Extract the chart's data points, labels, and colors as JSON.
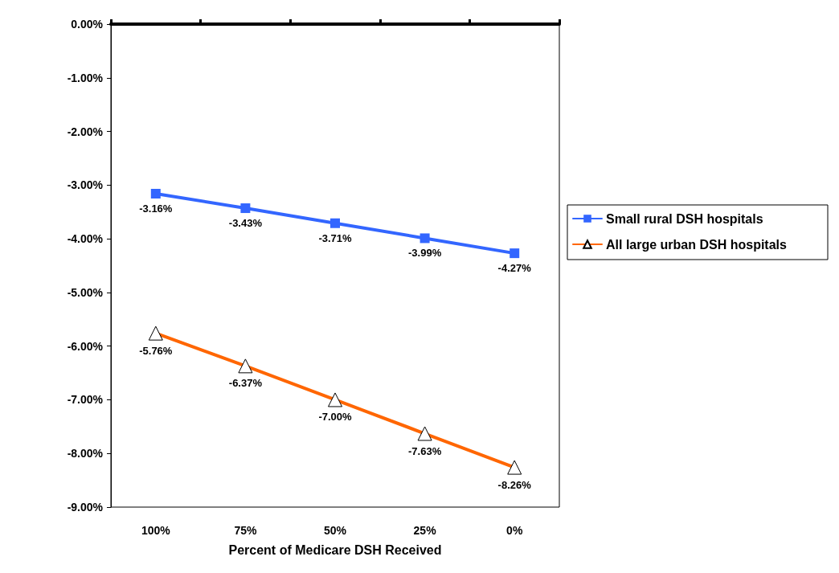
{
  "chart_data": {
    "type": "line",
    "xlabel": "Percent of Medicare DSH Received",
    "categories": [
      "100%",
      "75%",
      "50%",
      "25%",
      "0%"
    ],
    "series": [
      {
        "name": "Small rural DSH hospitals",
        "color": "#3366ff",
        "marker": "square",
        "values": [
          -3.16,
          -3.43,
          -3.71,
          -3.99,
          -4.27
        ],
        "value_labels": [
          "-3.16%",
          "-3.43%",
          "-3.71%",
          "-3.99%",
          "-4.27%"
        ]
      },
      {
        "name": "All large urban DSH hospitals",
        "color": "#ff6600",
        "marker": "triangle",
        "values": [
          -5.76,
          -6.37,
          -7.0,
          -7.63,
          -8.26
        ],
        "value_labels": [
          "-5.76%",
          "-6.37%",
          "-7.00%",
          "-7.63%",
          "-8.26%"
        ]
      }
    ],
    "ylim": [
      -9,
      0
    ],
    "yticks": [
      {
        "value": 0,
        "label": "0.00%"
      },
      {
        "value": -1,
        "label": "-1.00%"
      },
      {
        "value": -2,
        "label": "-2.00%"
      },
      {
        "value": -3,
        "label": "-3.00%"
      },
      {
        "value": -4,
        "label": "-4.00%"
      },
      {
        "value": -5,
        "label": "-5.00%"
      },
      {
        "value": -6,
        "label": "-6.00%"
      },
      {
        "value": -7,
        "label": "-7.00%"
      },
      {
        "value": -8,
        "label": "-8.00%"
      },
      {
        "value": -9,
        "label": "-9.00%"
      }
    ],
    "grid": false,
    "legend": "right",
    "line_style": "solid"
  }
}
